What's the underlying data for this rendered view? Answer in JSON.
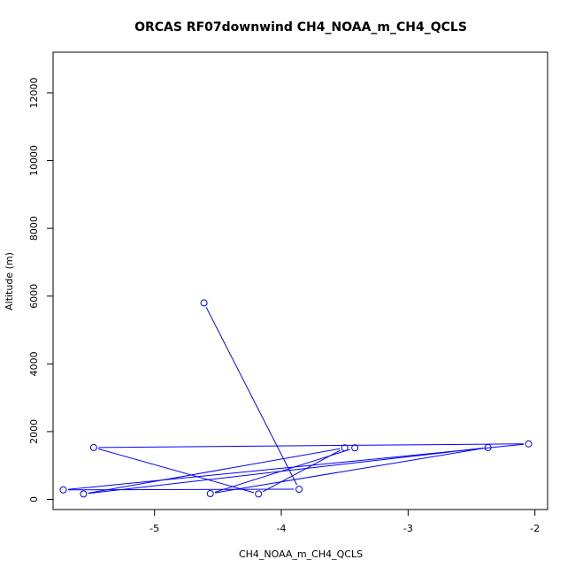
{
  "chart_data": {
    "type": "line",
    "title": "ORCAS RF07downwind CH4_NOAA_m_CH4_QCLS",
    "xlabel": "CH4_NOAA_m_CH4_QCLS",
    "ylabel": "Altitude (m)",
    "xlim": [
      -5.8,
      -1.9
    ],
    "ylim": [
      -300,
      13200
    ],
    "xticks": [
      -5,
      -4,
      -3,
      -2
    ],
    "yticks": [
      0,
      2000,
      4000,
      6000,
      8000,
      10000,
      12000
    ],
    "xtick_labels": [
      "-5",
      "-4",
      "-3",
      "-2"
    ],
    "ytick_labels": [
      "0",
      "2000",
      "4000",
      "6000",
      "8000",
      "10000",
      "12000"
    ],
    "grid": false,
    "series": [
      {
        "color": "#0000ff",
        "marker": "open-circle",
        "points": [
          {
            "x": -4.61,
            "y": 5800
          },
          {
            "x": -3.86,
            "y": 300
          },
          {
            "x": -5.72,
            "y": 280
          },
          {
            "x": -2.05,
            "y": 1640
          },
          {
            "x": -5.48,
            "y": 1530
          },
          {
            "x": -4.18,
            "y": 160
          },
          {
            "x": -3.5,
            "y": 1520
          },
          {
            "x": -5.56,
            "y": 160
          },
          {
            "x": -2.37,
            "y": 1530
          },
          {
            "x": -4.56,
            "y": 170
          },
          {
            "x": -3.42,
            "y": 1520
          }
        ]
      }
    ]
  }
}
